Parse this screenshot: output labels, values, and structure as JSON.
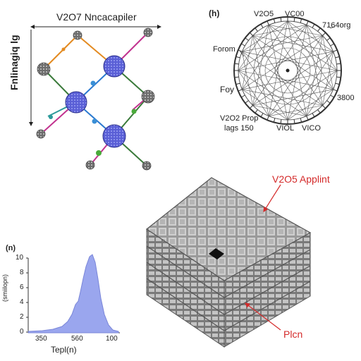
{
  "network_panel": {
    "title": "V2O7 Nncacapiler",
    "side_label": "Fnlinagiq lg"
  },
  "polar_panel": {
    "tag": "(h)",
    "top_labels": [
      "V2O5",
      "VC00"
    ],
    "right_top": "7164org",
    "left_1": "Forom",
    "left_2": "Foy",
    "right_mid": "3800",
    "bottom_left_1": "V2O2 Prop",
    "bottom_left_2": "lags 150",
    "bottom_mid_1": "VIOL",
    "bottom_mid_2": "VICO"
  },
  "spectrum_panel": {
    "tag": "(n)",
    "y_ticks": [
      "10",
      "8",
      "6",
      "4",
      "2",
      "0"
    ],
    "x_ticks": [
      "350",
      "560",
      "100"
    ],
    "xlabel": "Tepl(n)",
    "ylabel": "(smiilopn)",
    "fill_color": "#9aa6ee"
  },
  "lattice_panel": {
    "top_label": "V2O5 Applint",
    "bottom_label": "Plcn",
    "accent_color": "#d42a2a"
  }
}
